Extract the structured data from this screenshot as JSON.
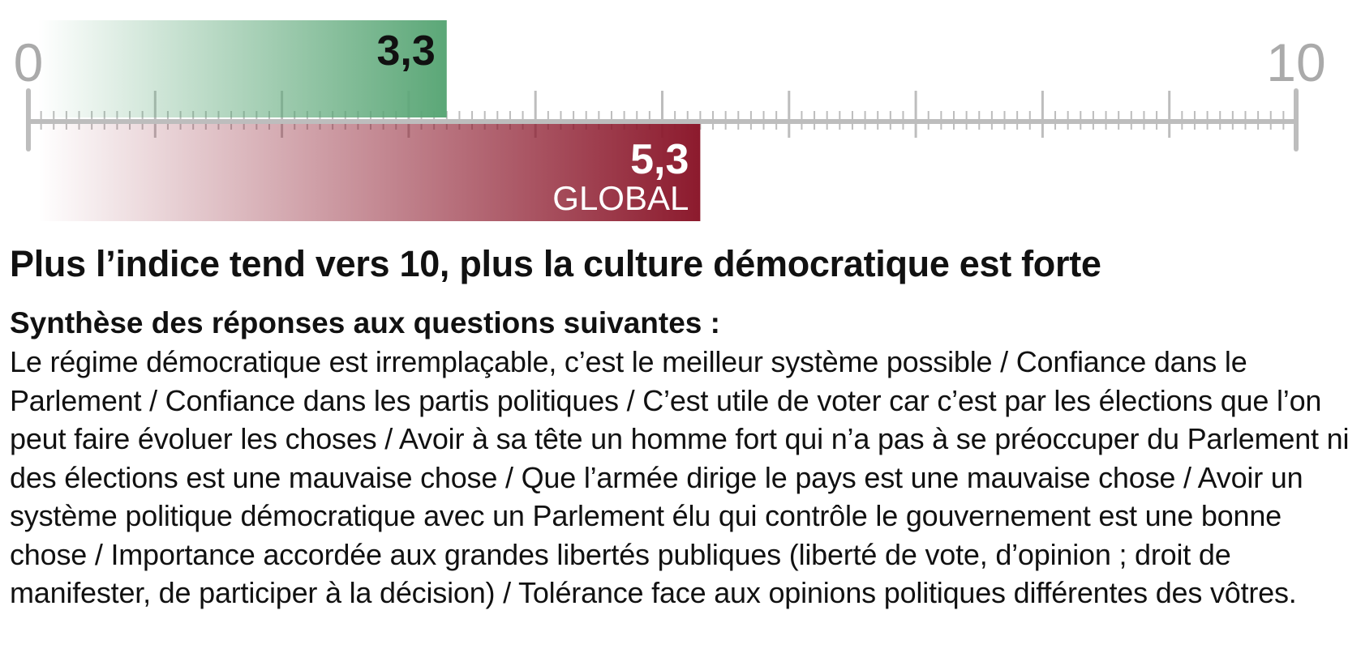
{
  "chart_data": {
    "type": "bar",
    "title": "Plus l’indice tend vers 10, plus la culture démocratique est forte",
    "subtitle": "Synthèse des réponses aux questions suivantes :",
    "text": "Le régime démocratique est irremplaçable, c’est le meilleur système possible / Confiance dans le Parlement / Confiance dans les partis politiques / C’est utile de voter car c’est par les élections que l’on peut faire évoluer les choses / Avoir à sa tête un homme fort qui n’a pas à se préoccuper du Parlement ni des élections est une mauvaise chose / Que l’armée dirige le pays est une mauvaise chose / Avoir un système politique démocratique avec un Parlement élu qui contrôle le gouvernement est une bonne chose / Importance accordée aux grandes libertés publiques (liberté de vote, d’opinion ; droit de manifester, de participer à la décision) / Tolérance face aux opinions politiques différentes des vôtres.",
    "xlim": [
      0,
      10
    ],
    "xticks": [
      0,
      10
    ],
    "major_ticks": [
      1,
      2,
      3,
      4,
      5,
      6,
      7,
      8,
      9
    ],
    "minor_divisions": 10,
    "series": [
      {
        "values": [
          3.3
        ],
        "value_labels": [
          "3,3"
        ],
        "color": "#5ba777"
      },
      {
        "name": "GLOBAL",
        "values": [
          5.3
        ],
        "value_labels": [
          "5,3"
        ],
        "color": "#8c1a2d"
      }
    ]
  }
}
